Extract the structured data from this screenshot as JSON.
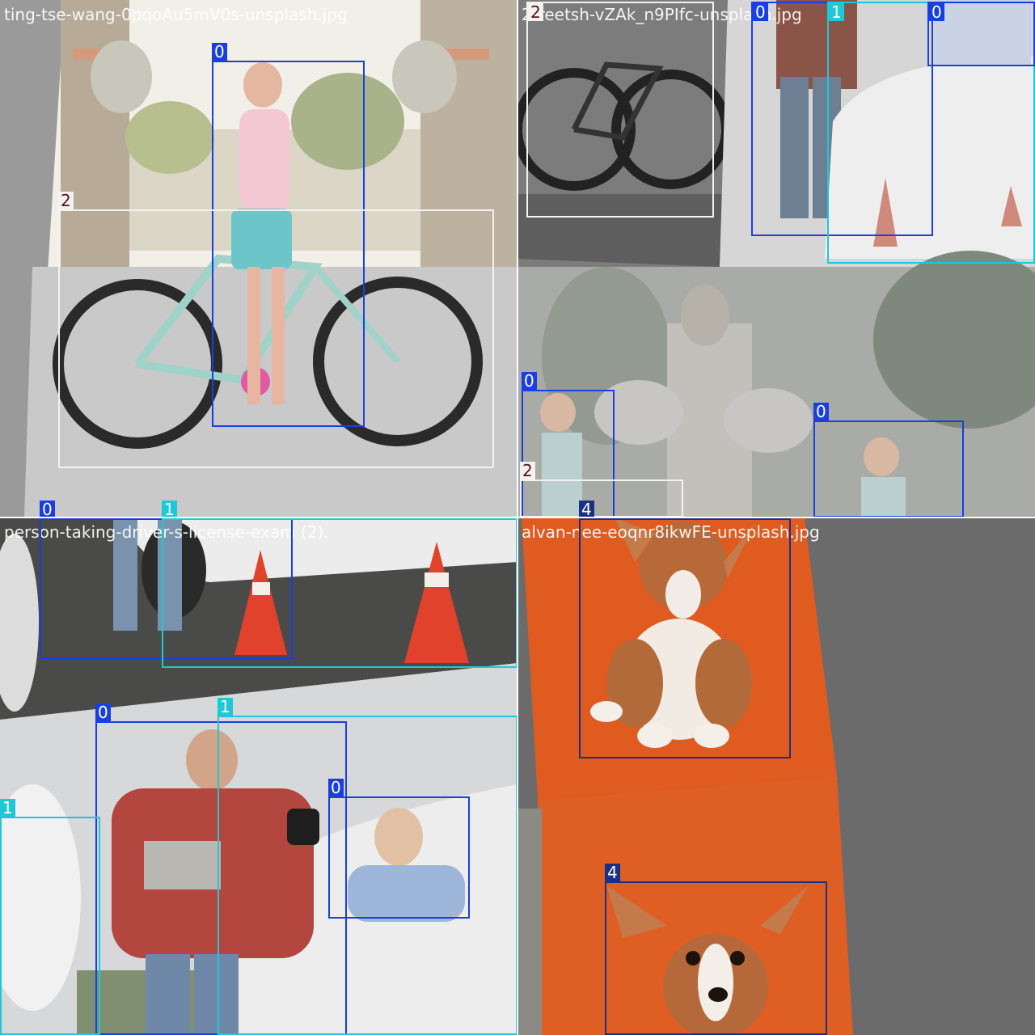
{
  "mosaic": {
    "tiles": [
      {
        "filename": "ting-tse-wang-0pqoAu5mV0s-unsplash.jpg"
      },
      {
        "filename": "2treetsh-vZAk_n9PIfc-unsplash.jpg"
      },
      {
        "filename": "person-taking-driver-s-license-exam (2)."
      },
      {
        "filename": "alvan-nee-eoqnr8ikwFE-unsplash.jpg"
      }
    ]
  },
  "colors": {
    "class_0": "#1a3fe0",
    "class_1": "#1ec8d8",
    "class_2": "#f2f2f2",
    "class_4": "#1a2f86"
  },
  "boxes": [
    {
      "label": "0",
      "class_id": 0
    },
    {
      "label": "2",
      "class_id": 2
    },
    {
      "label": "2",
      "class_id": 2
    },
    {
      "label": "0",
      "class_id": 0
    },
    {
      "label": "1",
      "class_id": 1
    },
    {
      "label": "0",
      "class_id": 0
    },
    {
      "label": "0",
      "class_id": 0
    },
    {
      "label": "2",
      "class_id": 2
    },
    {
      "label": "0",
      "class_id": 0
    },
    {
      "label": "4",
      "class_id": 4
    },
    {
      "label": "0",
      "class_id": 0
    },
    {
      "label": "1",
      "class_id": 1
    },
    {
      "label": "0",
      "class_id": 0
    },
    {
      "label": "1",
      "class_id": 1
    },
    {
      "label": "0",
      "class_id": 0
    },
    {
      "label": "1",
      "class_id": 1
    },
    {
      "label": "4",
      "class_id": 4
    },
    {
      "label": "4",
      "class_id": 4
    }
  ]
}
